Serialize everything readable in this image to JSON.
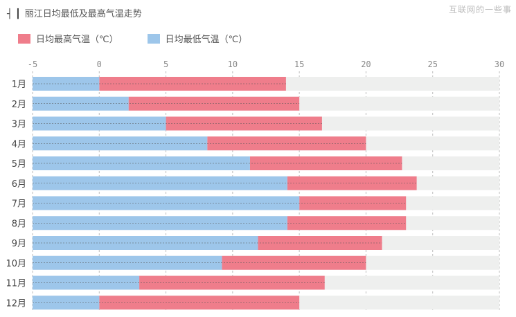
{
  "header": {
    "title": "丽江日均最低及最高气温走势",
    "watermark": "互联网的一些事"
  },
  "chart_data": {
    "type": "bar",
    "orientation": "horizontal",
    "categories": [
      "1月",
      "2月",
      "3月",
      "4月",
      "5月",
      "6月",
      "7月",
      "8月",
      "9月",
      "10月",
      "11月",
      "12月"
    ],
    "series": [
      {
        "name": "日均最高气温（℃）",
        "color": "#ef7d8b",
        "values": [
          14,
          15,
          16.7,
          20,
          22.7,
          23.8,
          23,
          23,
          21.2,
          20,
          16.9,
          15
        ]
      },
      {
        "name": "日均最低气温（℃）",
        "color": "#9dc6ea",
        "values": [
          0,
          2.2,
          5,
          8.1,
          11.3,
          14.1,
          15,
          14.1,
          11.9,
          9.2,
          3,
          0
        ]
      }
    ],
    "xlim": [
      -5,
      30
    ],
    "xticks": [
      "-5",
      "0",
      "5",
      "10",
      "15",
      "20",
      "25",
      "30"
    ],
    "track_color": "#eeefee",
    "grid": true,
    "legend_position": "top-left"
  }
}
